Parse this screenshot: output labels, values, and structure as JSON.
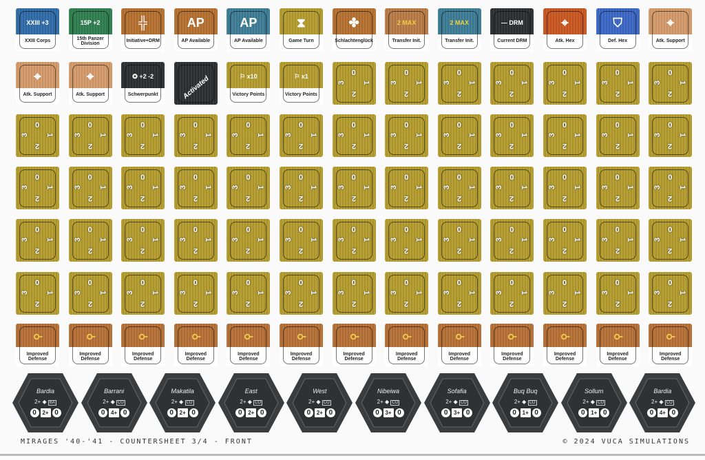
{
  "footer": {
    "left": "MIRAGES '40-'41 - COUNTERSHEET 3/4 - FRONT",
    "right": "© 2024 VUCA SIMULATIONS"
  },
  "row1": [
    {
      "label": "XXIII Corps",
      "color": "#2f6aa8",
      "icon": "unit-info",
      "text": "XXIII +3"
    },
    {
      "label": "15th Panzer Division",
      "color": "#2e7d4f",
      "icon": "unit-info",
      "text": "15P +2"
    },
    {
      "label": "Initiative+DRM",
      "color": "#b5702f",
      "icon": "initiative-cross-icon",
      "text": "╬"
    },
    {
      "label": "AP Available",
      "color": "#b5702f",
      "icon": "ap-icon",
      "text": "AP"
    },
    {
      "label": "AP Available",
      "color": "#3c7c95",
      "icon": "ap-icon",
      "text": "AP"
    },
    {
      "label": "Game Turn",
      "color": "#b39b2c",
      "icon": "hourglass-icon",
      "text": "⧗"
    },
    {
      "label": "Schlachtenglück",
      "color": "#b5702f",
      "icon": "clover-icon",
      "text": "✤"
    },
    {
      "label": "Transfer Init.",
      "color": "#b87a45",
      "icon": "max-icon",
      "text": "2 MAX"
    },
    {
      "label": "Transfer Init.",
      "color": "#3c7c95",
      "icon": "max-icon",
      "text": "2 MAX"
    },
    {
      "label": "Current DRM",
      "color": "#2b2e30",
      "icon": "drm-icon",
      "text": "— DRM"
    },
    {
      "label": "Atk. Hex",
      "color": "#c9561f",
      "icon": "target-hex-icon",
      "text": "⌖"
    },
    {
      "label": "Def. Hex",
      "color": "#3a66c4",
      "icon": "shield-hex-icon",
      "text": "⛉"
    },
    {
      "label": "Atk. Support",
      "color": "#d49a6a",
      "icon": "target-hex-icon",
      "text": "⌖"
    }
  ],
  "row2": [
    {
      "label": "Atk. Support",
      "color": "#d49a6a",
      "icon": "target-hex-icon",
      "text": "⌖"
    },
    {
      "label": "Atk. Support",
      "color": "#d49a6a",
      "icon": "target-hex-icon",
      "text": "⌖"
    },
    {
      "label": "Schwerpunkt",
      "color": "#2b2e30",
      "icon": "schwerpunkt-icon",
      "text": "✪ +2 -2"
    },
    {
      "label": "Activated",
      "color": "#2b2e30",
      "icon": "activated-text",
      "text": "",
      "full": true
    },
    {
      "label": "Victory Points",
      "color": "#b39b2c",
      "icon": "flag-icon",
      "text": "⚐ x10"
    },
    {
      "label": "Victory Points",
      "color": "#b39b2c",
      "icon": "flag-icon",
      "text": "⚐ x1"
    }
  ],
  "rotation_marker": {
    "values": [
      "0",
      "1",
      "2",
      "3"
    ],
    "color": "#b39b2c"
  },
  "improved_defense": {
    "label": "Improved Defense",
    "color": "#b56f35",
    "icon": "shovel-icon"
  },
  "hexes": [
    {
      "name": "Bardia",
      "req": "2+",
      "unit": "BA",
      "vals": [
        "0",
        "2+",
        "0"
      ]
    },
    {
      "name": "Barrani",
      "req": "2+",
      "unit": "CO",
      "vals": [
        "0",
        "4+",
        "0"
      ]
    },
    {
      "name": "Makatila",
      "req": "2+",
      "unit": "CO",
      "vals": [
        "0",
        "2+",
        "0"
      ]
    },
    {
      "name": "East",
      "req": "2+",
      "unit": "CO",
      "vals": [
        "0",
        "2+",
        "0"
      ]
    },
    {
      "name": "West",
      "req": "2+",
      "unit": "CO",
      "vals": [
        "0",
        "2+",
        "0"
      ]
    },
    {
      "name": "Nibeiwa",
      "req": "2+",
      "unit": "CO",
      "vals": [
        "0",
        "3+",
        "0"
      ]
    },
    {
      "name": "Sofafia",
      "req": "2+",
      "unit": "CO",
      "vals": [
        "0",
        "3+",
        "0"
      ]
    },
    {
      "name": "Buq Buq",
      "req": "2+",
      "unit": "CO",
      "vals": [
        "0",
        "1+",
        "0"
      ]
    },
    {
      "name": "Sollum",
      "req": "2+",
      "unit": "CO",
      "vals": [
        "0",
        "1+",
        "0"
      ]
    },
    {
      "name": "Bardia",
      "req": "2+",
      "unit": "CO",
      "vals": [
        "0",
        "4+",
        "0"
      ]
    }
  ]
}
